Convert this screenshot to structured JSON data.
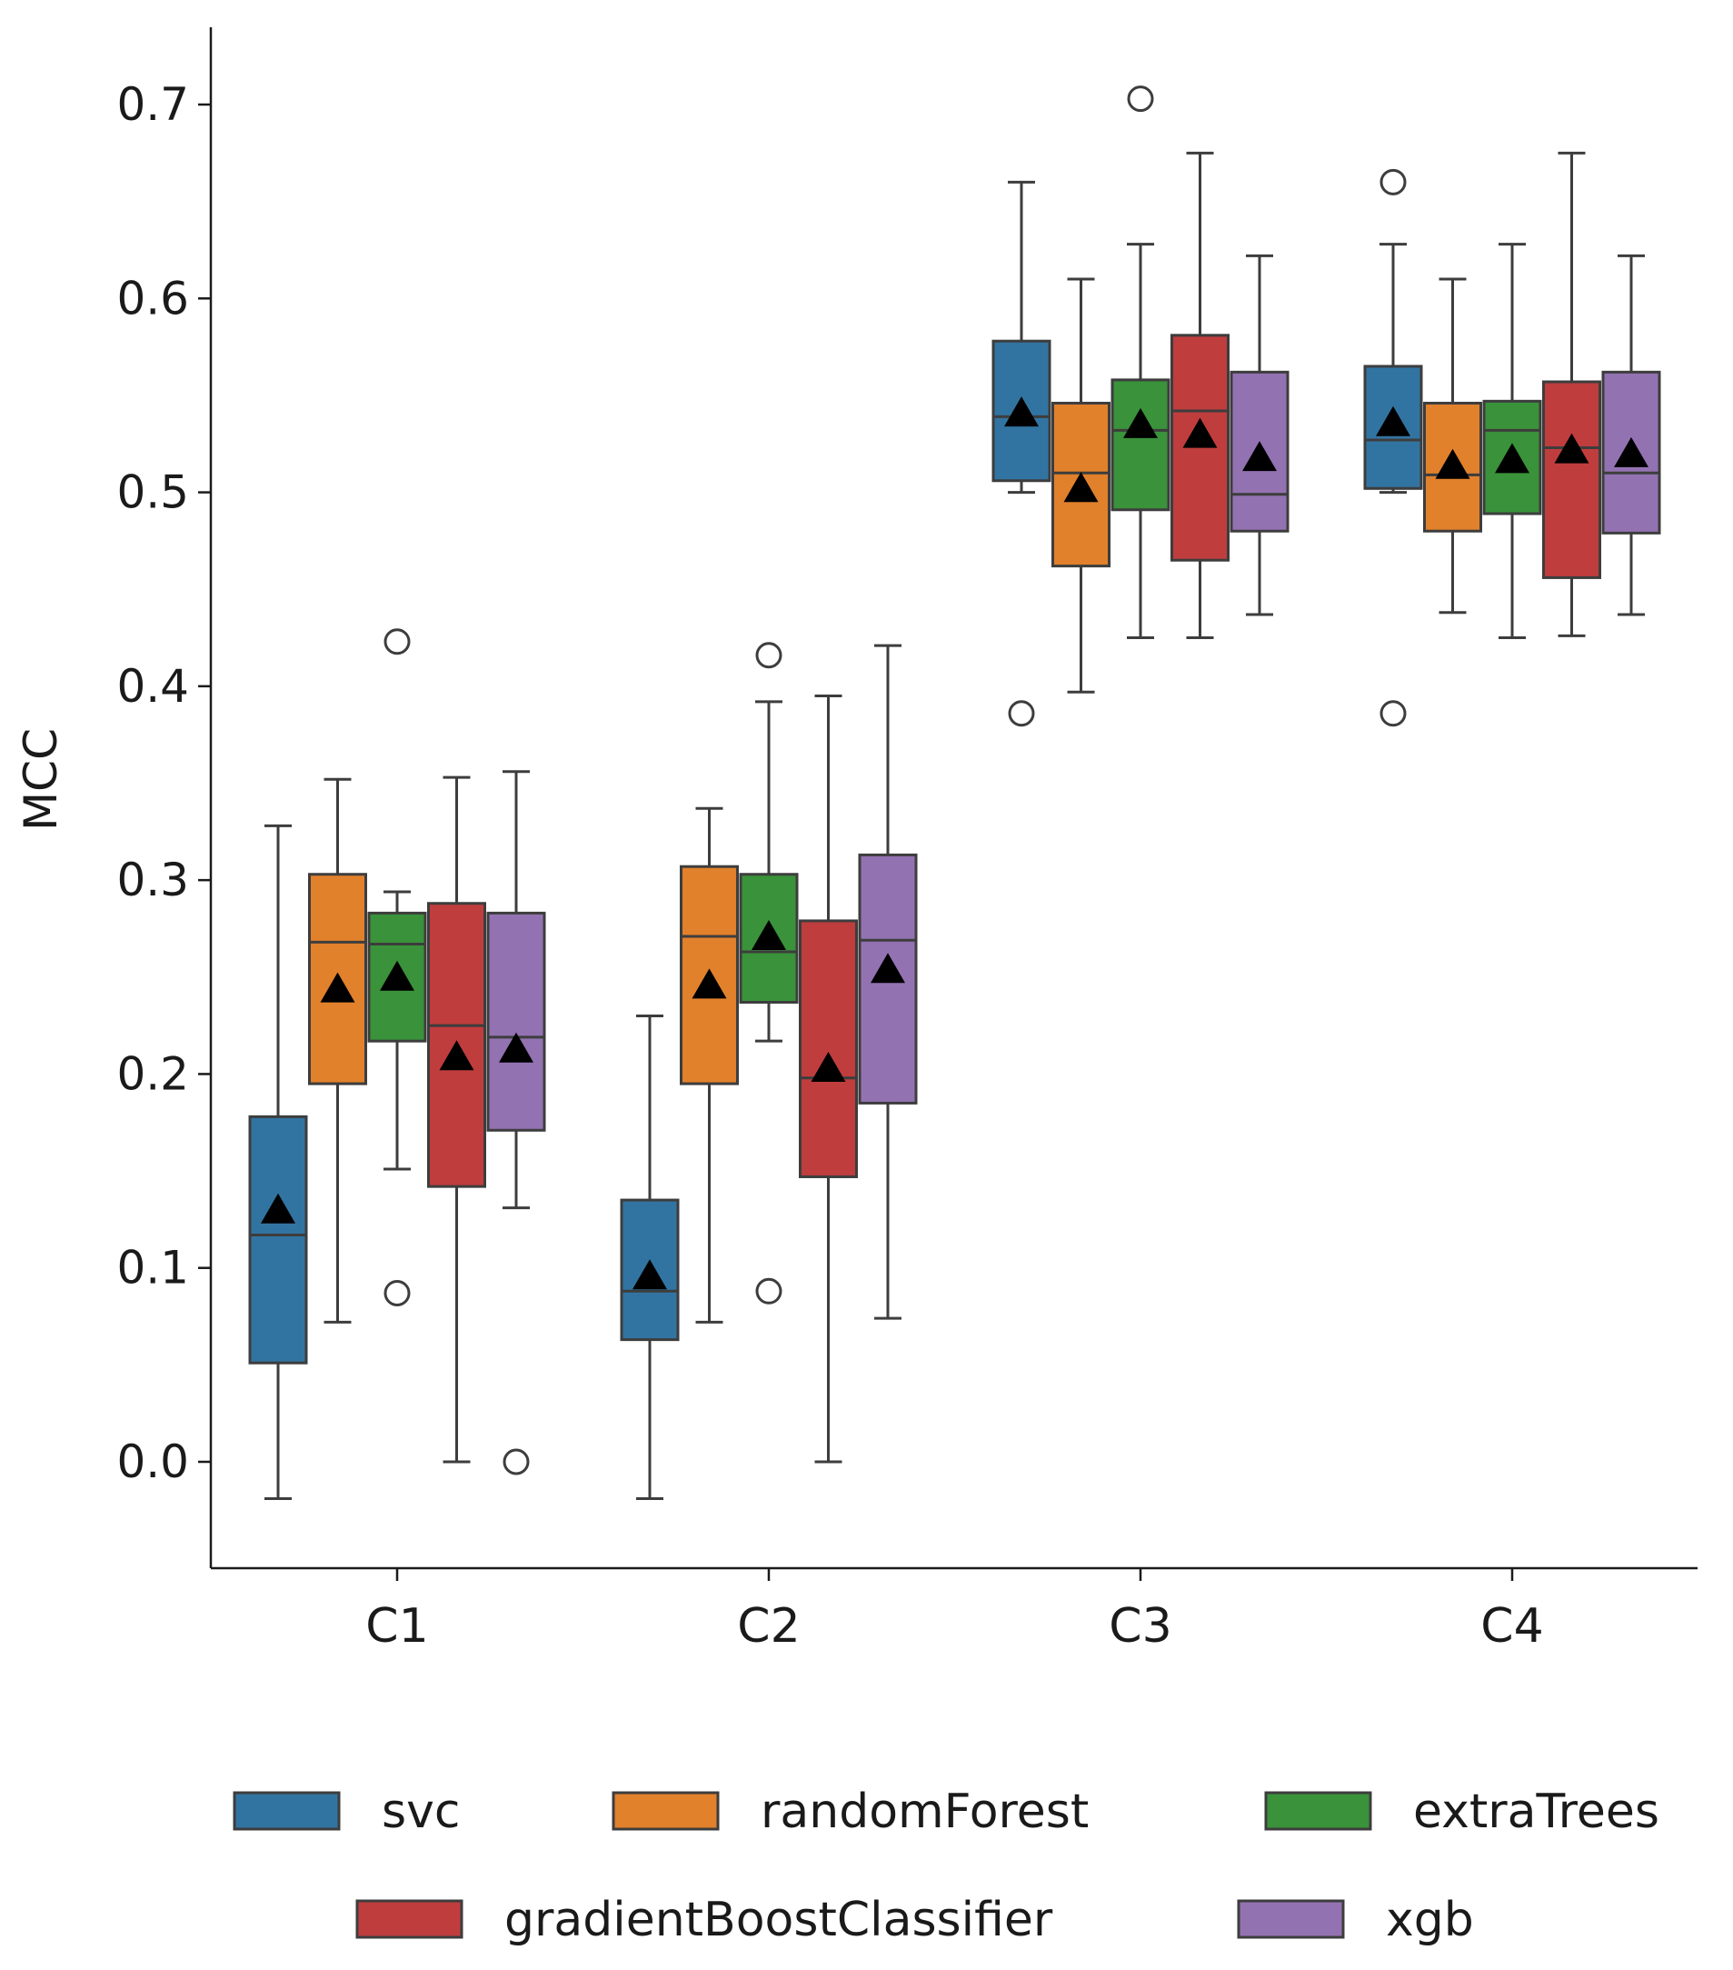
{
  "chart_data": {
    "type": "box",
    "title": "",
    "xlabel": "",
    "ylabel": "MCC",
    "ylim": [
      -0.055,
      0.74
    ],
    "yticks": [
      "0.0",
      "0.1",
      "0.2",
      "0.3",
      "0.4",
      "0.5",
      "0.6",
      "0.7"
    ],
    "grid": false,
    "legend_position": "bottom",
    "categories": [
      "C1",
      "C2",
      "C3",
      "C4"
    ],
    "series": [
      {
        "name": "svc",
        "color": "#3274a1",
        "boxes": [
          {
            "whisker_low": -0.019,
            "q1": 0.051,
            "median": 0.117,
            "q3": 0.178,
            "whisker_high": 0.328,
            "mean": 0.13,
            "outliers": []
          },
          {
            "whisker_low": -0.019,
            "q1": 0.063,
            "median": 0.088,
            "q3": 0.135,
            "whisker_high": 0.23,
            "mean": 0.096,
            "outliers": []
          },
          {
            "whisker_low": 0.5,
            "q1": 0.506,
            "median": 0.539,
            "q3": 0.578,
            "whisker_high": 0.66,
            "mean": 0.541,
            "outliers": [
              0.386
            ]
          },
          {
            "whisker_low": 0.5,
            "q1": 0.502,
            "median": 0.527,
            "q3": 0.565,
            "whisker_high": 0.628,
            "mean": 0.536,
            "outliers": [
              0.386,
              0.66
            ]
          }
        ]
      },
      {
        "name": "randomForest",
        "color": "#e1812c",
        "boxes": [
          {
            "whisker_low": 0.072,
            "q1": 0.195,
            "median": 0.268,
            "q3": 0.303,
            "whisker_high": 0.352,
            "mean": 0.244,
            "outliers": []
          },
          {
            "whisker_low": 0.072,
            "q1": 0.195,
            "median": 0.271,
            "q3": 0.307,
            "whisker_high": 0.337,
            "mean": 0.246,
            "outliers": []
          },
          {
            "whisker_low": 0.397,
            "q1": 0.462,
            "median": 0.51,
            "q3": 0.546,
            "whisker_high": 0.61,
            "mean": 0.502,
            "outliers": []
          },
          {
            "whisker_low": 0.438,
            "q1": 0.48,
            "median": 0.509,
            "q3": 0.546,
            "whisker_high": 0.61,
            "mean": 0.514,
            "outliers": []
          }
        ]
      },
      {
        "name": "extraTrees",
        "color": "#3a923a",
        "boxes": [
          {
            "whisker_low": 0.151,
            "q1": 0.217,
            "median": 0.267,
            "q3": 0.283,
            "whisker_high": 0.294,
            "mean": 0.25,
            "outliers": [
              0.423,
              0.087
            ]
          },
          {
            "whisker_low": 0.217,
            "q1": 0.237,
            "median": 0.263,
            "q3": 0.303,
            "whisker_high": 0.392,
            "mean": 0.271,
            "outliers": [
              0.416,
              0.088
            ]
          },
          {
            "whisker_low": 0.425,
            "q1": 0.491,
            "median": 0.532,
            "q3": 0.558,
            "whisker_high": 0.628,
            "mean": 0.535,
            "outliers": [
              0.703
            ]
          },
          {
            "whisker_low": 0.425,
            "q1": 0.489,
            "median": 0.532,
            "q3": 0.547,
            "whisker_high": 0.628,
            "mean": 0.517,
            "outliers": []
          }
        ]
      },
      {
        "name": "gradientBoostClassifier",
        "color": "#c03d3e",
        "boxes": [
          {
            "whisker_low": 0.0,
            "q1": 0.142,
            "median": 0.225,
            "q3": 0.288,
            "whisker_high": 0.353,
            "mean": 0.209,
            "outliers": []
          },
          {
            "whisker_low": 0.0,
            "q1": 0.147,
            "median": 0.198,
            "q3": 0.279,
            "whisker_high": 0.395,
            "mean": 0.203,
            "outliers": []
          },
          {
            "whisker_low": 0.425,
            "q1": 0.465,
            "median": 0.542,
            "q3": 0.581,
            "whisker_high": 0.675,
            "mean": 0.53,
            "outliers": []
          },
          {
            "whisker_low": 0.426,
            "q1": 0.456,
            "median": 0.523,
            "q3": 0.557,
            "whisker_high": 0.675,
            "mean": 0.522,
            "outliers": []
          }
        ]
      },
      {
        "name": "xgb",
        "color": "#9372b2",
        "boxes": [
          {
            "whisker_low": 0.131,
            "q1": 0.171,
            "median": 0.219,
            "q3": 0.283,
            "whisker_high": 0.356,
            "mean": 0.213,
            "outliers": [
              0.0
            ]
          },
          {
            "whisker_low": 0.074,
            "q1": 0.185,
            "median": 0.269,
            "q3": 0.313,
            "whisker_high": 0.421,
            "mean": 0.254,
            "outliers": []
          },
          {
            "whisker_low": 0.437,
            "q1": 0.48,
            "median": 0.499,
            "q3": 0.562,
            "whisker_high": 0.622,
            "mean": 0.518,
            "outliers": []
          },
          {
            "whisker_low": 0.437,
            "q1": 0.479,
            "median": 0.51,
            "q3": 0.562,
            "whisker_high": 0.622,
            "mean": 0.52,
            "outliers": []
          }
        ]
      }
    ]
  }
}
